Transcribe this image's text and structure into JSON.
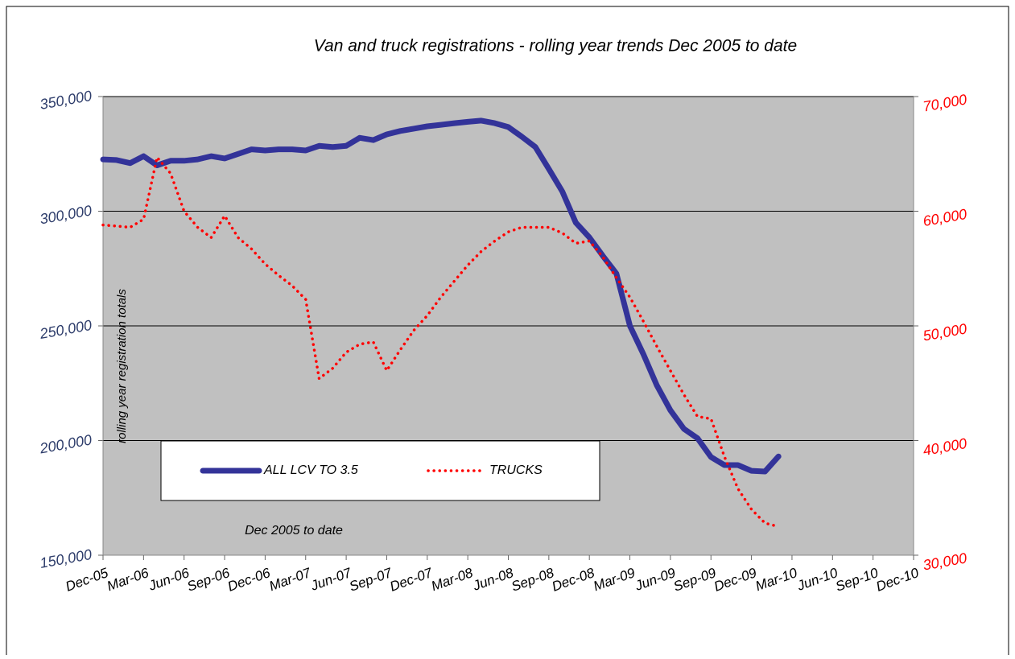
{
  "chart_data": {
    "type": "line",
    "title": "Van and truck registrations - rolling year trends Dec 2005 to date",
    "y_label": "rolling year registration totals",
    "annotation": "Dec 2005 to date",
    "categories": [
      "Dec-05",
      null,
      null,
      "Mar-06",
      null,
      null,
      "Jun-06",
      null,
      null,
      "Sep-06",
      null,
      null,
      "Dec-06",
      null,
      null,
      "Mar-07",
      null,
      null,
      "Jun-07",
      null,
      null,
      "Sep-07",
      null,
      null,
      "Dec-07",
      null,
      null,
      "Mar-08",
      null,
      null,
      "Jun-08",
      null,
      null,
      "Sep-08",
      null,
      null,
      "Dec-08",
      null,
      null,
      "Mar-09",
      null,
      null,
      "Jun-09",
      null,
      null,
      "Sep-09",
      null,
      null,
      "Dec-09",
      null,
      null,
      "Mar-10",
      null,
      null,
      "Jun-10",
      null,
      null,
      "Sep-10",
      null,
      null,
      "Dec-10"
    ],
    "series": [
      {
        "name": "ALL LCV TO 3.5",
        "color": "#333399",
        "style": "solid",
        "values": [
          322600,
          322300,
          321000,
          324000,
          320000,
          322000,
          322000,
          322600,
          324000,
          323000,
          325000,
          327000,
          326500,
          327000,
          327000,
          326500,
          328500,
          328000,
          328500,
          332000,
          331000,
          333500,
          335000,
          336000,
          337000,
          337700,
          338400,
          339000,
          339500,
          338400,
          336700,
          332500,
          328000,
          318400,
          308600,
          295000,
          288600,
          280500,
          272800,
          250000,
          237700,
          224000,
          213200,
          205100,
          201000,
          192800,
          189300,
          189300,
          186800,
          186500,
          193100,
          null,
          null,
          null,
          null,
          null,
          null,
          null,
          null,
          null,
          null
        ]
      },
      {
        "name": "TRUCKS",
        "color": "#ff0000",
        "style": "dotted",
        "axis": "y2",
        "values": [
          58800,
          58700,
          58600,
          59300,
          64700,
          63300,
          60000,
          58600,
          57700,
          59600,
          57700,
          56700,
          55400,
          54400,
          53500,
          52300,
          45400,
          46300,
          47700,
          48400,
          48600,
          46100,
          47900,
          49600,
          50900,
          52500,
          53900,
          55300,
          56500,
          57400,
          58200,
          58600,
          58600,
          58600,
          58100,
          57200,
          57400,
          56000,
          54200,
          52500,
          50400,
          48200,
          46100,
          44000,
          42100,
          41900,
          38600,
          35800,
          34000,
          32800,
          32500,
          null,
          null,
          null,
          null,
          null,
          null,
          null,
          null,
          null,
          null
        ]
      }
    ],
    "ylim": [
      150000,
      350000
    ],
    "yticks": [
      {
        "value": 150000,
        "label": "150,000"
      },
      {
        "value": 200000,
        "label": "200,000"
      },
      {
        "value": 250000,
        "label": "250,000"
      },
      {
        "value": 300000,
        "label": "300,000"
      },
      {
        "value": 350000,
        "label": "350,000"
      }
    ],
    "y2lim": [
      30000,
      70000
    ],
    "y2ticks": [
      {
        "value": 30000,
        "label": "30,000"
      },
      {
        "value": 40000,
        "label": "40,000"
      },
      {
        "value": 50000,
        "label": "50,000"
      },
      {
        "value": 60000,
        "label": "60,000"
      },
      {
        "value": 70000,
        "label": "70,000"
      }
    ],
    "grid": true,
    "legend": "bottom-left"
  }
}
